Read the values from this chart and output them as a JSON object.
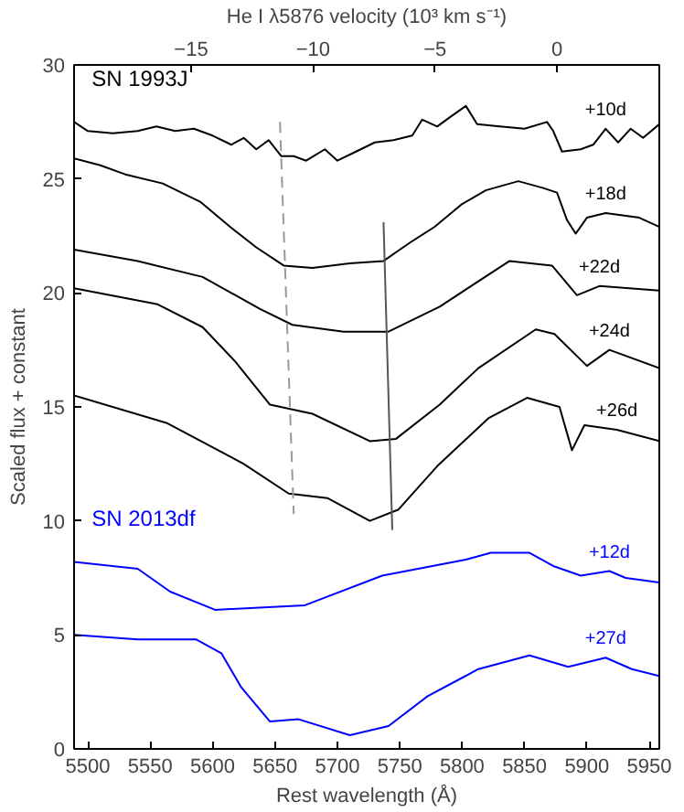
{
  "chart_data": {
    "type": "line",
    "xlabel": "Rest wavelength (Å)",
    "ylabel": "Scaled flux + constant",
    "x2label": "He I λ5876 velocity (10³ km s⁻¹)",
    "xlim": [
      5489,
      5958
    ],
    "xticks": [
      5500,
      5550,
      5600,
      5650,
      5700,
      5750,
      5800,
      5850,
      5900,
      5950
    ],
    "ylim": [
      0,
      30
    ],
    "yticks": [
      0,
      5,
      10,
      15,
      20,
      25,
      30
    ],
    "x2lim": [
      -19.8,
      4.2
    ],
    "x2ticks": [
      {
        "value": -15,
        "label": "−15"
      },
      {
        "value": -10,
        "label": "−10"
      },
      {
        "value": -5,
        "label": "−5"
      },
      {
        "value": 0,
        "label": "0"
      }
    ],
    "annotations": [
      "SN 1993J",
      "SN 2013df"
    ],
    "series": [
      {
        "name": "+10d",
        "color": "#000000",
        "x": [
          5489,
          5500,
          5520,
          5540,
          5555,
          5570,
          5585,
          5600,
          5615,
          5625,
          5635,
          5645,
          5655,
          5665,
          5675,
          5690,
          5700,
          5715,
          5730,
          5745,
          5760,
          5768,
          5780,
          5790,
          5803,
          5812,
          5830,
          5850,
          5868,
          5873,
          5880,
          5895,
          5905,
          5915,
          5925,
          5935,
          5945,
          5958
        ],
        "values": [
          27.5,
          27.1,
          27.0,
          27.1,
          27.3,
          27.1,
          27.2,
          26.9,
          26.5,
          26.8,
          26.3,
          26.7,
          26.0,
          26.0,
          25.8,
          26.3,
          25.8,
          26.2,
          26.6,
          26.7,
          26.9,
          27.6,
          27.3,
          27.7,
          28.2,
          27.4,
          27.3,
          27.2,
          27.5,
          27.1,
          26.2,
          26.3,
          26.5,
          27.2,
          26.6,
          27.2,
          26.8,
          27.4
        ]
      },
      {
        "name": "+18d",
        "color": "#000000",
        "x": [
          5489,
          5510,
          5530,
          5560,
          5590,
          5614,
          5635,
          5657,
          5680,
          5710,
          5737,
          5758,
          5778,
          5800,
          5819,
          5845,
          5865,
          5876,
          5884,
          5891,
          5900,
          5915,
          5942,
          5958
        ],
        "values": [
          25.9,
          25.6,
          25.2,
          24.8,
          24.0,
          22.9,
          22.0,
          21.2,
          21.1,
          21.3,
          21.4,
          22.2,
          22.9,
          23.9,
          24.5,
          24.9,
          24.6,
          24.4,
          23.2,
          22.6,
          23.3,
          23.5,
          23.3,
          22.9
        ]
      },
      {
        "name": "+22d",
        "color": "#000000",
        "x": [
          5489,
          5540,
          5592,
          5638,
          5664,
          5705,
          5741,
          5782,
          5838,
          5872,
          5892,
          5910,
          5958
        ],
        "values": [
          21.9,
          21.4,
          20.7,
          19.3,
          18.6,
          18.3,
          18.3,
          19.4,
          21.4,
          21.2,
          19.9,
          20.3,
          20.1
        ]
      },
      {
        "name": "+24d",
        "color": "#000000",
        "x": [
          5489,
          5556,
          5592,
          5618,
          5646,
          5680,
          5726,
          5747,
          5782,
          5813,
          5859,
          5874,
          5900,
          5918,
          5958
        ],
        "values": [
          20.2,
          19.5,
          18.5,
          17.0,
          15.1,
          14.7,
          13.5,
          13.6,
          15.1,
          16.7,
          18.4,
          18.2,
          16.8,
          17.5,
          16.7
        ]
      },
      {
        "name": "+26d",
        "color": "#000000",
        "x": [
          5489,
          5563,
          5625,
          5661,
          5692,
          5726,
          5749,
          5780,
          5821,
          5852,
          5878,
          5888,
          5898,
          5924,
          5958
        ],
        "values": [
          15.5,
          14.3,
          12.5,
          11.2,
          11.0,
          10.0,
          10.5,
          12.4,
          14.5,
          15.4,
          15.0,
          13.1,
          14.2,
          14.0,
          13.5
        ]
      },
      {
        "name": "+12d",
        "color": "#0000ff",
        "x": [
          5489,
          5540,
          5566,
          5602,
          5674,
          5736,
          5803,
          5823,
          5854,
          5874,
          5895,
          5918,
          5931,
          5958
        ],
        "values": [
          8.2,
          7.9,
          6.9,
          6.1,
          6.3,
          7.6,
          8.3,
          8.6,
          8.6,
          8.0,
          7.6,
          7.8,
          7.5,
          7.3
        ]
      },
      {
        "name": "+27d",
        "color": "#0000ff",
        "x": [
          5489,
          5540,
          5587,
          5607,
          5623,
          5646,
          5669,
          5710,
          5741,
          5772,
          5813,
          5854,
          5885,
          5915,
          5936,
          5958
        ],
        "values": [
          5.0,
          4.8,
          4.8,
          4.2,
          2.7,
          1.2,
          1.3,
          0.6,
          1.0,
          2.3,
          3.5,
          4.1,
          3.6,
          4.0,
          3.5,
          3.2
        ]
      },
      {
        "type": "line",
        "color": "#999999",
        "line_style": "dashed",
        "x": [
          5654,
          5665
        ],
        "values": [
          27.5,
          10.3
        ]
      },
      {
        "type": "line",
        "color": "#555555",
        "line_style": "solid",
        "x": [
          5737,
          5744
        ],
        "values": [
          23.1,
          9.6
        ]
      }
    ]
  }
}
